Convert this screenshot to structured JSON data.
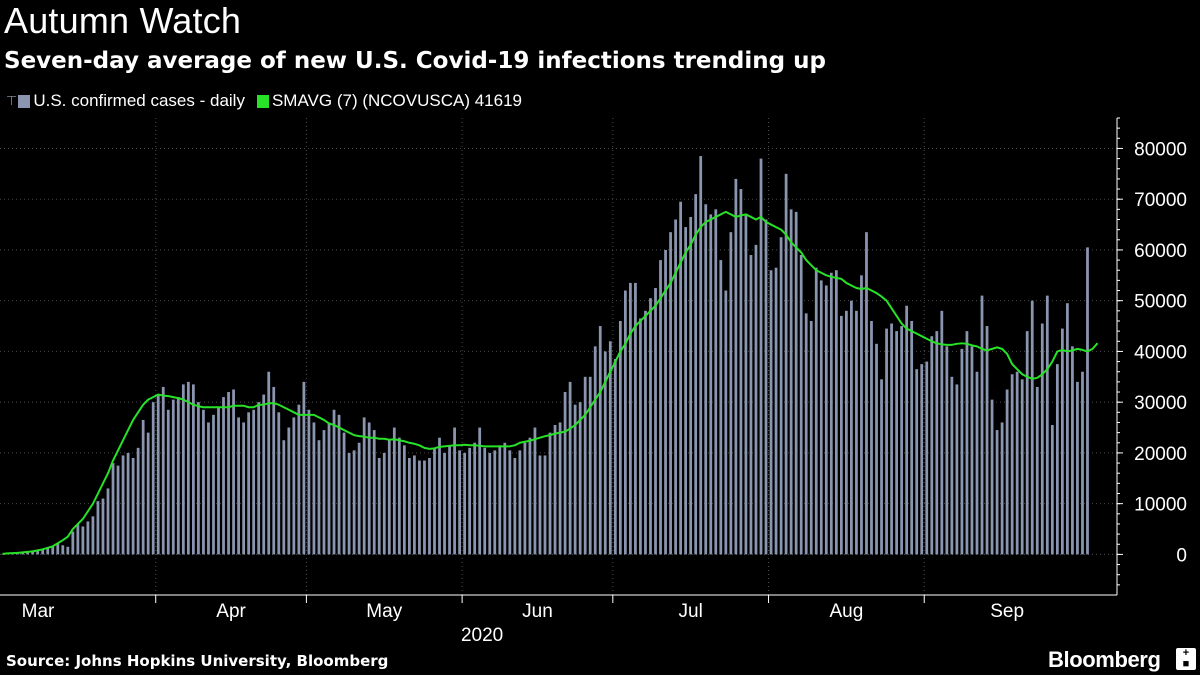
{
  "title": "Autumn Watch",
  "subtitle": "Seven-day average of new U.S. Covid-19 infections trending up",
  "legend": {
    "pin_icon": "pin-icon",
    "bars_label": "U.S. confirmed cases - daily",
    "bars_color": "#8a95b0",
    "line_label": "SMAVG (7) (NCOVUSCA) 41619",
    "line_color": "#27e227"
  },
  "source": "Source: Johns Hopkins University, Bloomberg",
  "brand": "Bloomberg",
  "brand_icon": "bloomberg-plus-icon",
  "chart_data": {
    "type": "bar",
    "title": "Seven-day average of new U.S. Covid-19 infections trending up",
    "xlabel": "2020",
    "ylabel": "",
    "ylim": [
      -8000,
      86000
    ],
    "yticks": [
      0,
      10000,
      20000,
      30000,
      40000,
      50000,
      60000,
      70000,
      80000
    ],
    "ytick_labels": [
      "0",
      "10000",
      "20000",
      "30000",
      "40000",
      "50000",
      "60000",
      "70000",
      "80000"
    ],
    "month_labels": [
      "Mar",
      "Apr",
      "May",
      "Jun",
      "Jul",
      "Aug",
      "Sep"
    ],
    "month_start_index": [
      0,
      31,
      61,
      92,
      122,
      153,
      184
    ],
    "year_label": "2020",
    "grid": true,
    "series": [
      {
        "name": "U.S. confirmed cases - daily",
        "type": "bar",
        "start": "2020-03-01",
        "values": [
          100,
          150,
          200,
          300,
          450,
          600,
          700,
          800,
          900,
          1200,
          1500,
          2200,
          1800,
          1500,
          4500,
          6000,
          5500,
          6500,
          7500,
          10500,
          11000,
          13000,
          18000,
          17500,
          19500,
          20000,
          19000,
          21000,
          26500,
          24000,
          30000,
          31500,
          33000,
          28500,
          30500,
          31000,
          33500,
          34000,
          33500,
          30000,
          28500,
          26000,
          27500,
          29000,
          31000,
          32000,
          32500,
          27000,
          26000,
          28000,
          28500,
          30000,
          31500,
          36000,
          33000,
          28000,
          22500,
          25000,
          27000,
          29500,
          34000,
          28500,
          26000,
          22500,
          24500,
          26000,
          28500,
          27500,
          24000,
          20000,
          20500,
          22000,
          27000,
          26000,
          24500,
          19000,
          20000,
          22500,
          25000,
          23000,
          21500,
          19000,
          19500,
          18500,
          18500,
          19000,
          21000,
          23000,
          20000,
          21500,
          25000,
          20500,
          20000,
          21000,
          22000,
          25000,
          21000,
          20000,
          20500,
          21500,
          22000,
          20500,
          19000,
          20500,
          22000,
          23000,
          25000,
          19500,
          19500,
          24000,
          25500,
          26000,
          32000,
          34000,
          29500,
          30000,
          35000,
          35000,
          41000,
          45000,
          40000,
          42000,
          38500,
          46000,
          52000,
          53500,
          53500,
          46500,
          48000,
          50500,
          52500,
          58000,
          60000,
          63500,
          66000,
          69500,
          64500,
          66500,
          71000,
          78500,
          69000,
          67000,
          68000,
          58000,
          52000,
          63500,
          74000,
          72000,
          67000,
          59000,
          61000,
          78000,
          66000,
          56000,
          56500,
          62500,
          75000,
          68000,
          67500,
          59000,
          47500,
          46000,
          56500,
          54000,
          53000,
          55500,
          56000,
          47000,
          48000,
          50000,
          48000,
          55000,
          63500,
          46000,
          41500,
          34500,
          44500,
          45500,
          44000,
          45000,
          49000,
          46000,
          36500,
          37500,
          38000,
          43000,
          44000,
          48000,
          41000,
          35000,
          33500,
          40500,
          44000,
          41000,
          36000,
          51000,
          45000,
          30500,
          24500,
          26000,
          32500,
          35500,
          36000,
          34500,
          44000,
          50000,
          33000,
          45500,
          51000,
          25500,
          37500,
          44500,
          49500,
          41000,
          34000,
          36000,
          60500
        ],
        "color": "#8a95b0"
      },
      {
        "name": "SMAVG (7) (NCOVUSCA) 41619",
        "type": "line",
        "start": "2020-03-01",
        "values": [
          100,
          200,
          250,
          300,
          400,
          500,
          600,
          800,
          1000,
          1300,
          1600,
          2200,
          2800,
          3500,
          5000,
          6000,
          7000,
          8500,
          10000,
          12000,
          14000,
          16000,
          18500,
          20500,
          22500,
          24500,
          26500,
          28000,
          29500,
          30500,
          31000,
          31500,
          31300,
          31200,
          31000,
          30800,
          30500,
          30000,
          29500,
          29200,
          29000,
          29000,
          29000,
          29000,
          29000,
          29000,
          29300,
          29300,
          29300,
          29000,
          29000,
          29500,
          29500,
          29800,
          29800,
          29500,
          29000,
          28500,
          28000,
          27500,
          27500,
          27500,
          27500,
          27000,
          26500,
          25800,
          25500,
          25000,
          24500,
          24000,
          23500,
          23300,
          23200,
          23000,
          23000,
          22800,
          22800,
          22600,
          22700,
          22500,
          22300,
          22000,
          21800,
          21500,
          21000,
          20800,
          20900,
          21200,
          21300,
          21400,
          21500,
          21500,
          21600,
          21500,
          21500,
          21400,
          21300,
          21300,
          21300,
          21300,
          21300,
          21300,
          21500,
          22000,
          22200,
          22400,
          22700,
          23000,
          23300,
          23500,
          23800,
          24000,
          24200,
          24800,
          25500,
          26500,
          27500,
          29000,
          30500,
          32000,
          34000,
          36000,
          38000,
          40000,
          41500,
          43500,
          45000,
          46000,
          47000,
          48000,
          49000,
          50500,
          52000,
          53500,
          55500,
          57500,
          59500,
          61000,
          63000,
          64500,
          65500,
          66000,
          66500,
          67000,
          67500,
          67000,
          66500,
          66800,
          67000,
          66500,
          66000,
          66500,
          65500,
          65000,
          64500,
          64000,
          63000,
          61500,
          60500,
          59500,
          58000,
          57000,
          56000,
          55500,
          55000,
          54700,
          54500,
          54300,
          53500,
          53000,
          52500,
          52300,
          52500,
          52000,
          51500,
          50800,
          50000,
          48500,
          47000,
          45500,
          44500,
          44000,
          43500,
          43000,
          42500,
          42000,
          41600,
          41400,
          41300,
          41300,
          41500,
          41600,
          41500,
          41200,
          41000,
          40500,
          40200,
          40500,
          40800,
          40500,
          39500,
          37500,
          36500,
          35500,
          35000,
          34600,
          34800,
          35500,
          36500,
          38000,
          40000,
          40300,
          40000,
          40200,
          40500,
          40300,
          40000,
          40500,
          41619
        ],
        "color": "#27e227"
      }
    ]
  }
}
